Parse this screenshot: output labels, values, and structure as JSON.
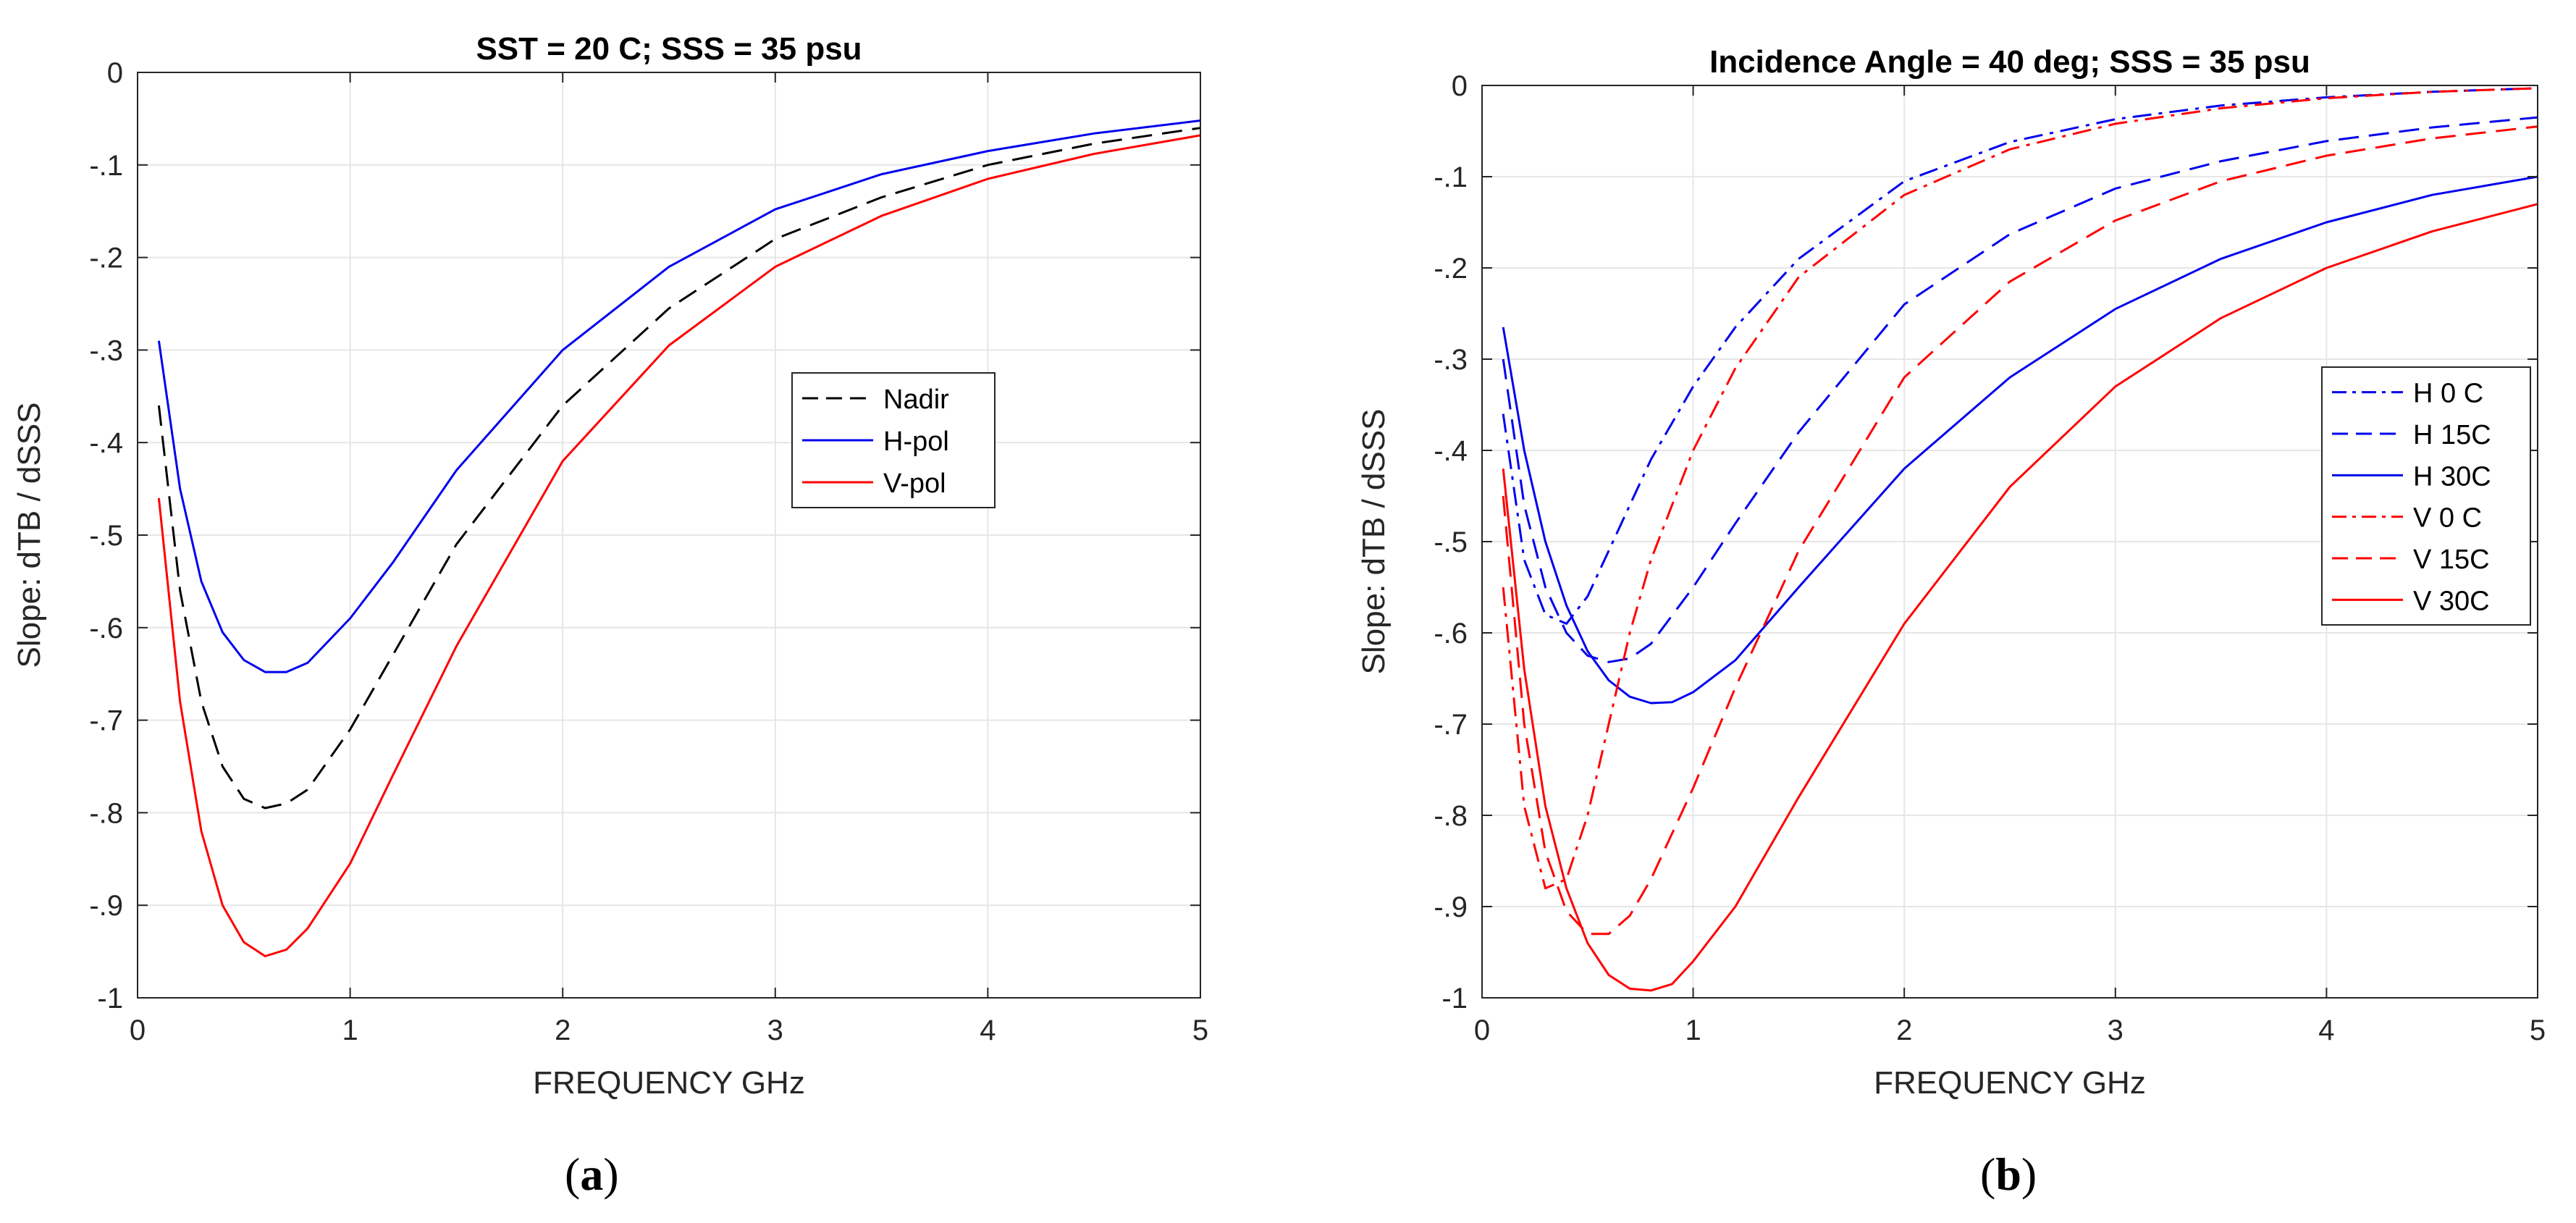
{
  "chart_data": [
    {
      "type": "line",
      "panel_label": "a",
      "title": "SST = 20 C;   SSS = 35 psu",
      "xlabel": "FREQUENCY   GHz",
      "ylabel": "Slope:  dTB / dSSS",
      "xlim": [
        0,
        5
      ],
      "ylim": [
        -1,
        0
      ],
      "xticks": [
        0,
        1,
        2,
        3,
        4,
        5
      ],
      "yticks": [
        0,
        -0.1,
        -0.2,
        -0.3,
        -0.4,
        -0.5,
        -0.6,
        -0.7,
        -0.8,
        -0.9,
        -1
      ],
      "grid": true,
      "legend_position": "center-right",
      "series": [
        {
          "name": "Nadir",
          "color": "#000000",
          "style": "dashed",
          "x": [
            0.1,
            0.2,
            0.3,
            0.4,
            0.5,
            0.6,
            0.7,
            0.8,
            1.0,
            1.2,
            1.5,
            2.0,
            2.5,
            3.0,
            3.5,
            4.0,
            4.5,
            5.0
          ],
          "y": [
            -0.36,
            -0.56,
            -0.68,
            -0.75,
            -0.785,
            -0.795,
            -0.79,
            -0.775,
            -0.71,
            -0.63,
            -0.51,
            -0.36,
            -0.255,
            -0.18,
            -0.135,
            -0.1,
            -0.077,
            -0.06
          ]
        },
        {
          "name": "H-pol",
          "color": "#0000ee",
          "style": "solid",
          "x": [
            0.1,
            0.2,
            0.3,
            0.4,
            0.5,
            0.6,
            0.7,
            0.8,
            1.0,
            1.2,
            1.5,
            2.0,
            2.5,
            3.0,
            3.5,
            4.0,
            4.5,
            5.0
          ],
          "y": [
            -0.29,
            -0.45,
            -0.55,
            -0.605,
            -0.635,
            -0.648,
            -0.648,
            -0.638,
            -0.59,
            -0.53,
            -0.43,
            -0.3,
            -0.21,
            -0.148,
            -0.11,
            -0.085,
            -0.066,
            -0.052
          ]
        },
        {
          "name": "V-pol",
          "color": "#ff0000",
          "style": "solid",
          "x": [
            0.1,
            0.2,
            0.3,
            0.4,
            0.5,
            0.6,
            0.7,
            0.8,
            1.0,
            1.2,
            1.5,
            2.0,
            2.5,
            3.0,
            3.5,
            4.0,
            4.5,
            5.0
          ],
          "y": [
            -0.46,
            -0.68,
            -0.82,
            -0.9,
            -0.94,
            -0.955,
            -0.948,
            -0.925,
            -0.855,
            -0.76,
            -0.62,
            -0.42,
            -0.295,
            -0.21,
            -0.155,
            -0.115,
            -0.088,
            -0.068
          ]
        }
      ]
    },
    {
      "type": "line",
      "panel_label": "b",
      "title": "Incidence Angle = 40 deg;   SSS = 35 psu",
      "xlabel": "FREQUENCY   GHz",
      "ylabel": "Slope:  dTB / dSSS",
      "xlim": [
        0,
        5
      ],
      "ylim": [
        -1,
        0
      ],
      "xticks": [
        0,
        1,
        2,
        3,
        4,
        5
      ],
      "yticks": [
        0,
        -0.1,
        -0.2,
        -0.3,
        -0.4,
        -0.5,
        -0.6,
        -0.7,
        -0.8,
        -0.9,
        -1
      ],
      "grid": true,
      "legend_position": "top-right",
      "series": [
        {
          "name": "H 0 C",
          "color": "#0000ee",
          "style": "dashdot",
          "x": [
            0.1,
            0.2,
            0.3,
            0.4,
            0.5,
            0.6,
            0.7,
            0.8,
            1.0,
            1.2,
            1.5,
            2.0,
            2.5,
            3.0,
            3.5,
            4.0,
            4.5,
            5.0
          ],
          "y": [
            -0.36,
            -0.52,
            -0.58,
            -0.59,
            -0.56,
            -0.51,
            -0.46,
            -0.41,
            -0.33,
            -0.265,
            -0.19,
            -0.105,
            -0.062,
            -0.037,
            -0.022,
            -0.013,
            -0.007,
            -0.003
          ]
        },
        {
          "name": "H 15C",
          "color": "#0000ee",
          "style": "dashed",
          "x": [
            0.1,
            0.2,
            0.3,
            0.4,
            0.5,
            0.6,
            0.7,
            0.8,
            1.0,
            1.2,
            1.5,
            2.0,
            2.5,
            3.0,
            3.5,
            4.0,
            4.5,
            5.0
          ],
          "y": [
            -0.3,
            -0.46,
            -0.55,
            -0.6,
            -0.625,
            -0.632,
            -0.628,
            -0.612,
            -0.55,
            -0.48,
            -0.38,
            -0.24,
            -0.163,
            -0.113,
            -0.083,
            -0.061,
            -0.046,
            -0.035
          ]
        },
        {
          "name": "H 30C",
          "color": "#0000ee",
          "style": "solid",
          "x": [
            0.1,
            0.2,
            0.3,
            0.4,
            0.5,
            0.6,
            0.7,
            0.8,
            0.9,
            1.0,
            1.2,
            1.5,
            2.0,
            2.5,
            3.0,
            3.5,
            4.0,
            4.5,
            5.0
          ],
          "y": [
            -0.265,
            -0.4,
            -0.5,
            -0.57,
            -0.62,
            -0.652,
            -0.67,
            -0.677,
            -0.676,
            -0.665,
            -0.63,
            -0.55,
            -0.42,
            -0.32,
            -0.245,
            -0.19,
            -0.15,
            -0.12,
            -0.1
          ]
        },
        {
          "name": "V 0 C",
          "color": "#ff0000",
          "style": "dashdot",
          "x": [
            0.1,
            0.2,
            0.3,
            0.4,
            0.5,
            0.6,
            0.7,
            0.8,
            1.0,
            1.2,
            1.5,
            2.0,
            2.5,
            3.0,
            3.5,
            4.0,
            4.5,
            5.0
          ],
          "y": [
            -0.55,
            -0.79,
            -0.88,
            -0.87,
            -0.8,
            -0.7,
            -0.6,
            -0.52,
            -0.4,
            -0.31,
            -0.21,
            -0.12,
            -0.07,
            -0.042,
            -0.025,
            -0.014,
            -0.007,
            -0.003
          ]
        },
        {
          "name": "V 15C",
          "color": "#ff0000",
          "style": "dashed",
          "x": [
            0.1,
            0.2,
            0.3,
            0.4,
            0.5,
            0.6,
            0.7,
            0.8,
            1.0,
            1.2,
            1.5,
            2.0,
            2.5,
            3.0,
            3.5,
            4.0,
            4.5,
            5.0
          ],
          "y": [
            -0.45,
            -0.7,
            -0.84,
            -0.905,
            -0.93,
            -0.93,
            -0.91,
            -0.87,
            -0.77,
            -0.66,
            -0.51,
            -0.32,
            -0.215,
            -0.148,
            -0.105,
            -0.077,
            -0.058,
            -0.045
          ]
        },
        {
          "name": "V 30C",
          "color": "#ff0000",
          "style": "solid",
          "x": [
            0.1,
            0.2,
            0.3,
            0.4,
            0.5,
            0.6,
            0.7,
            0.8,
            0.9,
            1.0,
            1.2,
            1.5,
            2.0,
            2.5,
            3.0,
            3.5,
            4.0,
            4.5,
            5.0
          ],
          "y": [
            -0.42,
            -0.64,
            -0.79,
            -0.88,
            -0.94,
            -0.975,
            -0.99,
            -0.992,
            -0.985,
            -0.96,
            -0.9,
            -0.78,
            -0.59,
            -0.44,
            -0.33,
            -0.255,
            -0.2,
            -0.16,
            -0.13
          ]
        }
      ]
    }
  ],
  "captions": {
    "a": {
      "open": "(",
      "letter": "a",
      "close": ")"
    },
    "b": {
      "open": "(",
      "letter": "b",
      "close": ")"
    }
  }
}
